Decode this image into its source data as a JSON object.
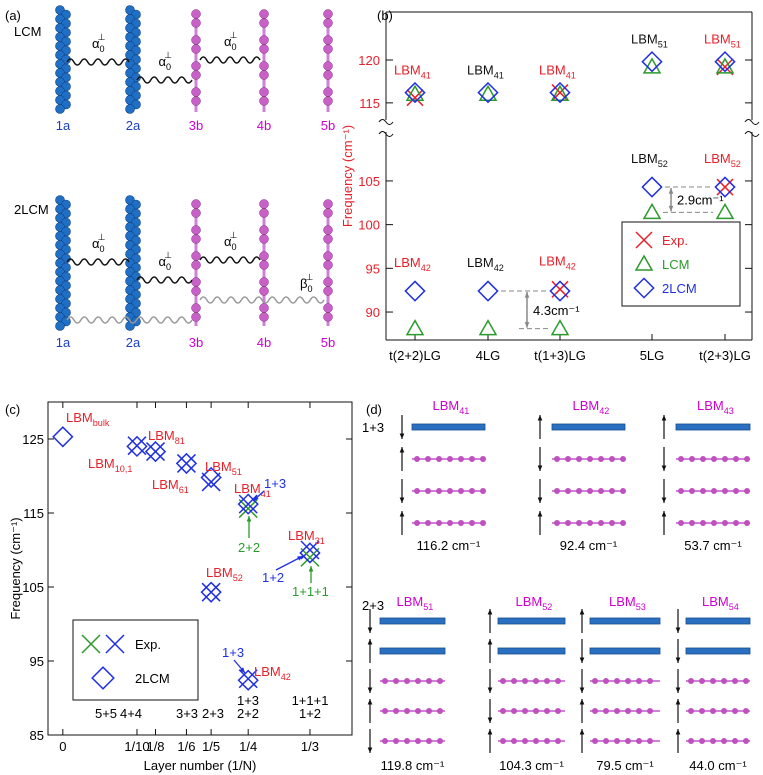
{
  "panel_labels": [
    "(a)",
    "(b)",
    "(c)",
    "(d)"
  ],
  "diagram_a": {
    "row_labels": [
      "LCM",
      "2LCM"
    ],
    "layers": [
      "1a",
      "2a",
      "3b",
      "4b",
      "5b"
    ],
    "layer_colors": [
      "#1a3fbf",
      "#1a3fbf",
      "#d000d0",
      "#d000d0",
      "#d000d0"
    ],
    "alpha": {
      "text": "α",
      "sub": "0",
      "sup": "⊥"
    },
    "beta": {
      "text": "β",
      "sub": "0",
      "sup": "⊥"
    }
  },
  "chart_data": [
    {
      "type": "dot",
      "ylabel": "Frequency (cm⁻¹)",
      "categories": [
        "t(2+2)LG",
        "4LG",
        "t(1+3)LG",
        "5LG",
        "t(2+3)LG"
      ],
      "ylim": [
        86.8,
        110.6
      ],
      "yticks": [
        90,
        95,
        100,
        105
      ],
      "ylim_break": [
        113,
        125.6
      ],
      "yticks_break": [
        115,
        120
      ],
      "axis_color": "#e8202a",
      "series": [
        {
          "name": "Exp.",
          "color": "#e8202a",
          "marker": "x",
          "values": [
            115.6,
            null,
            116.2,
            null,
            119.2
          ],
          "values_low": [
            null,
            null,
            92.6,
            null,
            104.3
          ]
        },
        {
          "name": "LCM",
          "color": "#2a9a2a",
          "marker": "triangle",
          "values": [
            116.0,
            116.0,
            116.0,
            119.2,
            119.2
          ],
          "values_low": [
            88.1,
            88.1,
            88.1,
            101.4,
            101.4
          ]
        },
        {
          "name": "2LCM",
          "color": "#2030e0",
          "marker": "diamond",
          "values": [
            116.2,
            116.2,
            116.2,
            119.8,
            119.8
          ],
          "values_low": [
            92.4,
            92.4,
            92.4,
            104.3,
            104.3
          ]
        }
      ],
      "mode_labels": [
        {
          "text": "LBM",
          "sub": "41",
          "color": "#e8202a"
        },
        {
          "text": "LBM",
          "sub": "41",
          "color": "#111111"
        },
        {
          "text": "LBM",
          "sub": "41",
          "color": "#e8202a"
        },
        {
          "text": "LBM",
          "sub": "51",
          "color": "#111111"
        },
        {
          "text": "LBM",
          "sub": "51",
          "color": "#e8202a"
        }
      ],
      "mode_labels_low": [
        {
          "text": "LBM",
          "sub": "42",
          "color": "#e8202a"
        },
        {
          "text": "LBM",
          "sub": "42",
          "color": "#111111"
        },
        {
          "text": "LBM",
          "sub": "42",
          "color": "#e8202a"
        },
        {
          "text": "LBM",
          "sub": "52",
          "color": "#111111"
        },
        {
          "text": "LBM",
          "sub": "52",
          "color": "#e8202a"
        }
      ],
      "splittings": [
        "4.3cm⁻¹",
        "2.9cm⁻¹"
      ],
      "legend": "lower right"
    },
    {
      "type": "scatter",
      "xlabel": "Layer number (1/N)",
      "ylabel": "Frequency (cm⁻¹)",
      "xlim": [
        -0.02,
        0.39
      ],
      "xticks": [
        0,
        {
          "value": 0.1,
          "label": "1/10"
        },
        {
          "value": 0.125,
          "label": "1/8"
        },
        {
          "value": 0.1667,
          "label": "1/6"
        },
        {
          "value": 0.2,
          "label": "1/5"
        },
        {
          "value": 0.25,
          "label": "1/4"
        },
        {
          "value": 0.3333,
          "label": "1/3"
        }
      ],
      "ylim": [
        85,
        130
      ],
      "yticks": [
        85,
        95,
        105,
        115,
        125
      ],
      "series": [
        {
          "name": "Exp.",
          "marker": "x",
          "colors": [
            "#2a9a2a",
            "#2030e0",
            "#2030e0",
            "#2030e0",
            "#2030e0",
            "#2030e0",
            "#2030e0",
            "#2030e0",
            "#2030e0",
            "#2a9a2a"
          ],
          "x": [
            0.25,
            0.1,
            0.125,
            0.1667,
            0.2,
            0.25,
            0.2,
            0.25,
            0.3333,
            0.3333
          ],
          "values": [
            115.6,
            124.1,
            123.3,
            121.7,
            119.2,
            116.2,
            104.3,
            92.6,
            110.0,
            109.0
          ]
        },
        {
          "name": "2LCM",
          "marker": "diamond",
          "color": "#2030e0",
          "x": [
            0,
            0.1,
            0.125,
            0.1667,
            0.2,
            0.25,
            0.2,
            0.25,
            0.3333
          ],
          "values": [
            125.3,
            124.0,
            123.3,
            121.7,
            119.8,
            116.2,
            104.3,
            92.4,
            109.6
          ]
        }
      ],
      "mode_label_color": "#e8202a",
      "mode_labels": [
        {
          "text": "LBM",
          "sub": "bulk"
        },
        {
          "text": "LBM",
          "sub": "10,1"
        },
        {
          "text": "LBM",
          "sub": "81"
        },
        {
          "text": "LBM",
          "sub": "61"
        },
        {
          "text": "LBM",
          "sub": "51"
        },
        {
          "text": "LBM",
          "sub": "41"
        },
        {
          "text": "LBM",
          "sub": "52"
        },
        {
          "text": "LBM",
          "sub": "42"
        },
        {
          "text": "LBM",
          "sub": "31"
        }
      ],
      "arrow_labels": [
        {
          "text": "1+3",
          "color": "#2030e0"
        },
        {
          "text": "2+2",
          "color": "#2a9a2a"
        },
        {
          "text": "1+2",
          "color": "#2030e0"
        },
        {
          "text": "1+1+1",
          "color": "#2a9a2a"
        },
        {
          "text": "1+3",
          "color": "#2030e0"
        }
      ],
      "composition_labels": [
        [],
        [
          "5+5"
        ],
        [
          "4+4"
        ],
        [
          "3+3"
        ],
        [
          "2+3"
        ],
        [
          "1+3",
          "2+2"
        ],
        [
          "1+1+1",
          "1+2"
        ]
      ],
      "legend": "lower left"
    }
  ],
  "diagram_d": {
    "groups": [
      {
        "name": "1+3",
        "modes": [
          {
            "label": {
              "text": "LBM",
              "sub": "41"
            },
            "frequency": "116.2 cm⁻¹"
          },
          {
            "label": {
              "text": "LBM",
              "sub": "42"
            },
            "frequency": "92.4 cm⁻¹"
          },
          {
            "label": {
              "text": "LBM",
              "sub": "43"
            },
            "frequency": "53.7 cm⁻¹"
          }
        ]
      },
      {
        "name": "2+3",
        "modes": [
          {
            "label": {
              "text": "LBM",
              "sub": "51"
            },
            "frequency": "119.8 cm⁻¹"
          },
          {
            "label": {
              "text": "LBM",
              "sub": "52"
            },
            "frequency": "104.3 cm⁻¹"
          },
          {
            "label": {
              "text": "LBM",
              "sub": "53"
            },
            "frequency": "79.5 cm⁻¹"
          },
          {
            "label": {
              "text": "LBM",
              "sub": "54"
            },
            "frequency": "44.0 cm⁻¹"
          }
        ]
      }
    ]
  }
}
